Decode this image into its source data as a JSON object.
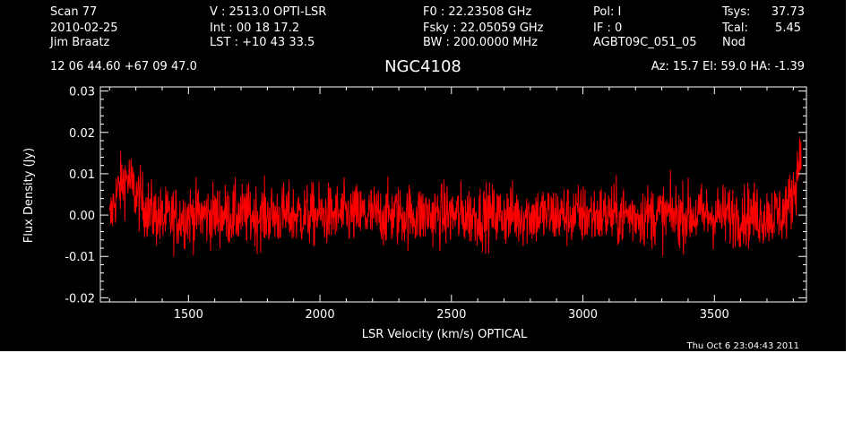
{
  "header": {
    "col1": [
      "Scan         77",
      "2010-02-25",
      "Jim Braatz"
    ],
    "col2": [
      "V   :     2513.0 OPTI-LSR",
      "Int  :  00 18 17.2",
      "LST : +10 43 33.5"
    ],
    "col3": [
      "F0   :  22.23508 GHz",
      "Fsky :  22.05059 GHz",
      "BW   : 200.0000 MHz"
    ],
    "col4": [
      "Pol:     I",
      "IF :      0",
      "AGBT09C_051_05"
    ],
    "col5": [
      "Tsys:",
      "Tcal:",
      "Nod"
    ],
    "col6": [
      "37.73",
      "5.45",
      ""
    ],
    "coords": "12 06 44.60  +67 09 47.0",
    "source": "NGC4108",
    "pointing": "Az:  15.7   El:  59.0   HA: -1.39",
    "timestamp": "Thu Oct  6 23:04:43 2011"
  },
  "colors": {
    "background": "#000000",
    "trace": "#ff0000",
    "axes": "#ffffff"
  },
  "chart_data": {
    "type": "line",
    "xlabel": "LSR Velocity (km/s) OPTICAL",
    "ylabel": "Flux Density (Jy)",
    "xlim": [
      1165,
      3850
    ],
    "ylim": [
      -0.021,
      0.031
    ],
    "x_ticks": [
      1500,
      2000,
      2500,
      3000,
      3500
    ],
    "x_tick_labels": [
      "1500",
      "2000",
      "2500",
      "3000",
      "3500"
    ],
    "y_ticks": [
      -0.02,
      -0.01,
      0.0,
      0.01,
      0.02,
      0.03
    ],
    "y_tick_labels": [
      "-0.02",
      "-0.01",
      "0.00",
      "0.01",
      "0.02",
      "0.03"
    ],
    "grid": false,
    "series": [
      {
        "color": "#ff0000",
        "x_range": [
          1200,
          3830
        ],
        "noise_rms": 0.0038,
        "baseline": [
          [
            1200,
            -0.002
          ],
          [
            1220,
            0.004
          ],
          [
            1250,
            0.008
          ],
          [
            1270,
            0.009
          ],
          [
            1300,
            0.005
          ],
          [
            1350,
            0.001
          ],
          [
            1400,
            -0.001
          ],
          [
            1500,
            0.0
          ],
          [
            2000,
            0.0
          ],
          [
            2500,
            0.0
          ],
          [
            3000,
            0.0
          ],
          [
            3500,
            0.0
          ],
          [
            3700,
            0.0
          ],
          [
            3760,
            0.0005
          ],
          [
            3790,
            0.003
          ],
          [
            3815,
            0.01
          ],
          [
            3830,
            0.017
          ]
        ]
      }
    ]
  }
}
